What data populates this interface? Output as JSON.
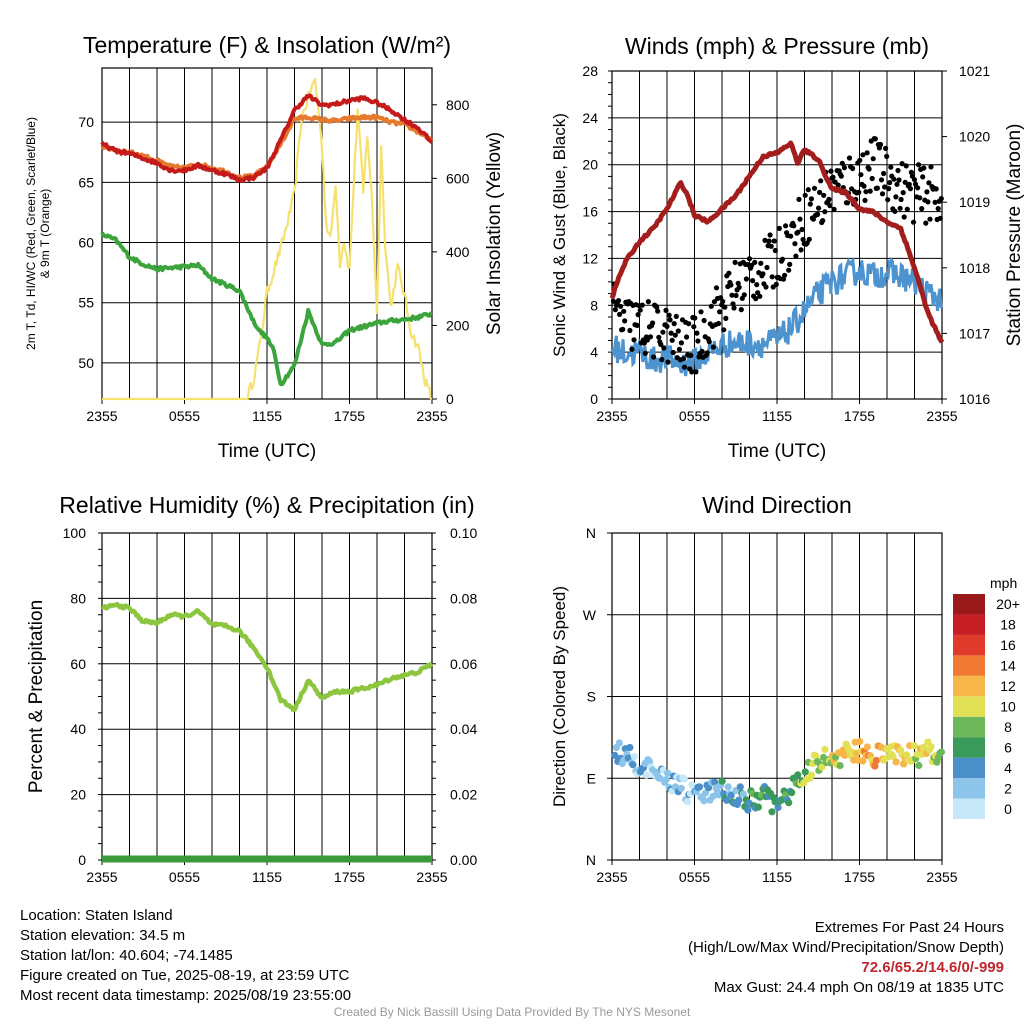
{
  "chart_data": [
    {
      "type": "line",
      "title": "Temperature (F) & Insolation (W/m²)",
      "xlabel": "Time (UTC)",
      "ylabel": "2m T, Td, HI/WC (Red, Green, Scarlet/Blue) & 9m T (Orange)",
      "y2label": "Solar Insolation (Yellow)",
      "x_ticks": [
        "2355",
        "0555",
        "1155",
        "1755",
        "2355"
      ],
      "y_ticks": [
        50,
        55,
        60,
        65,
        70
      ],
      "y2_ticks": [
        0,
        200,
        400,
        600,
        800
      ],
      "ylim": [
        47,
        74.5
      ],
      "y2lim": [
        0,
        900
      ],
      "grid": true,
      "series": [
        {
          "axis": "left",
          "color": "#c41a1a",
          "hours": [
            0,
            1,
            2,
            3,
            4,
            5,
            6,
            7,
            8,
            9,
            10,
            11,
            12,
            13,
            14,
            15,
            16,
            17,
            18,
            19,
            20,
            21,
            22,
            23,
            24
          ],
          "values": [
            68.2,
            67.6,
            67.4,
            67.0,
            66.6,
            66.0,
            66.0,
            66.4,
            66.0,
            65.7,
            65.2,
            65.4,
            66.2,
            68.5,
            71.0,
            72.2,
            71.4,
            71.5,
            71.8,
            72.0,
            71.6,
            71.0,
            70.2,
            69.5,
            68.3
          ]
        },
        {
          "axis": "left",
          "color": "#e5792d",
          "hours": [
            0,
            1,
            2,
            3,
            4,
            5,
            6,
            7,
            8,
            9,
            10,
            11,
            12,
            13,
            14,
            15,
            16,
            17,
            18,
            19,
            20,
            21,
            22,
            23,
            24
          ],
          "values": [
            68.0,
            67.7,
            67.5,
            67.2,
            66.8,
            66.3,
            66.2,
            66.5,
            66.2,
            65.9,
            65.4,
            65.5,
            66.3,
            68.2,
            70.3,
            70.4,
            70.2,
            70.1,
            70.3,
            70.4,
            70.4,
            70.0,
            69.8,
            69.2,
            68.5
          ]
        },
        {
          "axis": "left",
          "color": "#3ca43c",
          "hours": [
            0,
            1,
            2,
            3,
            4,
            5,
            6,
            7,
            8,
            9,
            10,
            11,
            11.5,
            12,
            12.5,
            13,
            14,
            15,
            16,
            17,
            18,
            19,
            20,
            21,
            22,
            23,
            24
          ],
          "values": [
            60.7,
            60.2,
            58.8,
            58.2,
            57.8,
            57.9,
            58.0,
            58.1,
            57.0,
            56.5,
            56.0,
            53.5,
            52.6,
            52.1,
            51.0,
            48.2,
            49.8,
            54.3,
            51.5,
            51.7,
            52.7,
            53.0,
            53.3,
            53.5,
            53.6,
            53.8,
            54.1
          ]
        },
        {
          "axis": "right",
          "color": "#f5e16e",
          "hours": [
            0,
            10.5,
            11,
            11.5,
            12,
            13,
            13.5,
            14,
            14.5,
            15,
            15.5,
            16,
            16.3,
            16.6,
            17,
            17.3,
            17.6,
            18,
            18.3,
            18.6,
            19,
            19.3,
            19.6,
            20,
            20.3,
            20.6,
            21,
            21.5,
            22,
            22.5,
            23,
            23.5,
            24
          ],
          "values": [
            0,
            0,
            50,
            150,
            290,
            410,
            480,
            560,
            760,
            820,
            870,
            690,
            480,
            430,
            590,
            370,
            430,
            350,
            580,
            790,
            560,
            720,
            560,
            240,
            690,
            420,
            250,
            360,
            280,
            180,
            140,
            50,
            0
          ]
        }
      ]
    },
    {
      "type": "line",
      "title": "Winds (mph) & Pressure (mb)",
      "xlabel": "Time (UTC)",
      "ylabel": "Sonic Wind & Gust (Blue, Black)",
      "y2label": "Station Pressure (Maroon)",
      "x_ticks": [
        "2355",
        "0555",
        "1155",
        "1755",
        "2355"
      ],
      "y_ticks": [
        0,
        4,
        8,
        12,
        16,
        20,
        24,
        28
      ],
      "y2_ticks": [
        1016,
        1017,
        1018,
        1019,
        1020,
        1021
      ],
      "ylim": [
        0,
        28
      ],
      "y2lim": [
        1016,
        1021
      ],
      "grid": true,
      "series": [
        {
          "name": "",
          "axis": "left",
          "color": "#4c93cf",
          "hours": [
            0,
            1,
            2,
            3,
            4,
            5,
            6,
            7,
            8,
            9,
            10,
            11,
            12,
            13,
            14,
            15,
            16,
            17,
            18,
            19,
            20,
            21,
            22,
            23,
            24
          ],
          "values": [
            4.5,
            3.9,
            4.0,
            3.3,
            3.5,
            3.0,
            3.2,
            3.9,
            4.6,
            4.8,
            4.8,
            4.7,
            5.0,
            6.0,
            7.5,
            9.0,
            10.0,
            10.5,
            11.0,
            10.5,
            10.8,
            10.5,
            10.0,
            9.0,
            8.5
          ]
        },
        {
          "name": "",
          "axis": "left",
          "color": "#000000",
          "type": "scatter",
          "hours": [
            0,
            1,
            2,
            3,
            4,
            5,
            6,
            7,
            8,
            9,
            10,
            11,
            12,
            13,
            14,
            15,
            16,
            17,
            18,
            19,
            20,
            21,
            22,
            23,
            24
          ],
          "values": [
            7.5,
            6.5,
            6.2,
            5.8,
            5.5,
            4.5,
            4.5,
            6.2,
            8.0,
            9.5,
            10.5,
            11.0,
            12.0,
            13.5,
            15.5,
            16.5,
            18.0,
            18.5,
            19.0,
            20.0,
            19.0,
            18.0,
            17.5,
            17.5,
            17.0
          ]
        },
        {
          "name": "",
          "axis": "right",
          "color": "#a31d1d",
          "hours": [
            0,
            0.5,
            1,
            2,
            3,
            4,
            5,
            5.5,
            6,
            7,
            8,
            9,
            10,
            11,
            12,
            13,
            13.5,
            14,
            15,
            16,
            17,
            18,
            19,
            20,
            21,
            22,
            23,
            24
          ],
          "values": [
            1017.55,
            1017.85,
            1018.1,
            1018.4,
            1018.6,
            1018.9,
            1019.3,
            1019.1,
            1018.8,
            1018.7,
            1018.9,
            1019.1,
            1019.4,
            1019.7,
            1019.75,
            1019.9,
            1019.6,
            1019.8,
            1019.65,
            1019.2,
            1019.15,
            1018.9,
            1018.85,
            1018.7,
            1018.6,
            1018.0,
            1017.3,
            1016.85
          ]
        }
      ]
    },
    {
      "type": "line",
      "title": "Relative Humidity (%) & Precipitation (in)",
      "xlabel": "",
      "ylabel": "Percent & Precipitation",
      "x_ticks": [
        "2355",
        "0555",
        "1155",
        "1755",
        "2355"
      ],
      "y_ticks": [
        0,
        20,
        40,
        60,
        80,
        100
      ],
      "y2_ticks": [
        "0.00",
        "0.02",
        "0.04",
        "0.06",
        "0.08",
        "0.10"
      ],
      "ylim": [
        0,
        100
      ],
      "y2lim": [
        0,
        0.1
      ],
      "grid": true,
      "series": [
        {
          "axis": "left",
          "color": "#8cc63e",
          "hours": [
            0,
            1,
            2,
            3,
            4,
            5,
            6,
            7,
            8,
            9,
            10,
            11,
            12,
            13,
            14,
            15,
            16,
            17,
            18,
            19,
            20,
            21,
            22,
            23,
            24
          ],
          "values": [
            77,
            78,
            77,
            73,
            72.5,
            75,
            74.5,
            76,
            72,
            71.5,
            70,
            65,
            59,
            49,
            46,
            55,
            49.5,
            51.5,
            51.5,
            52.5,
            53.5,
            55.5,
            56.5,
            57.5,
            60
          ]
        },
        {
          "axis": "right",
          "color": "#3a9a3a",
          "hours": [
            0,
            24
          ],
          "values": [
            0,
            0
          ]
        }
      ]
    },
    {
      "type": "scatter",
      "title": "Wind Direction",
      "xlabel": "",
      "ylabel": "Direction (Colored By Speed)",
      "x_ticks": [
        "2355",
        "0555",
        "1155",
        "1755",
        "2355"
      ],
      "y_ticks": [
        "N",
        "E",
        "S",
        "W",
        "N"
      ],
      "ylim": [
        0,
        360
      ],
      "grid": true,
      "colorbar": {
        "unit": "mph",
        "labels": [
          "0",
          "2",
          "4",
          "6",
          "8",
          "10",
          "12",
          "14",
          "16",
          "18",
          "20+"
        ],
        "colors": [
          "#c6e8f9",
          "#8dc5ea",
          "#4b8fc9",
          "#3a9a5a",
          "#6cb85a",
          "#e2e055",
          "#f8b549",
          "#f07a33",
          "#e03b2a",
          "#c61f25",
          "#9a1a1a"
        ]
      },
      "series": [
        {
          "hours": [
            0,
            1,
            2,
            3,
            4,
            5,
            6,
            7,
            8,
            9,
            10,
            11,
            12,
            13,
            14,
            15,
            16,
            17,
            18,
            19,
            20,
            21,
            22,
            23,
            24
          ],
          "values": [
            120,
            115,
            105,
            95,
            90,
            80,
            70,
            75,
            78,
            72,
            65,
            70,
            60,
            75,
            95,
            110,
            112,
            118,
            120,
            115,
            115,
            118,
            115,
            118,
            112
          ],
          "speeds": [
            3,
            3,
            2.5,
            2,
            2.5,
            2,
            2,
            3,
            4,
            4,
            5,
            6,
            5,
            6,
            8,
            9,
            10,
            11,
            11,
            12,
            11,
            11,
            10,
            10,
            9
          ]
        }
      ]
    }
  ],
  "info": {
    "location": "Location: Staten Island",
    "elevation": "Station elevation: 34.5 m",
    "latlon": "Station lat/lon: 40.604; -74.1485",
    "created": "Figure created on Tue, 2025-08-19, at 23:59 UTC",
    "recent": "Most recent data timestamp: 2025/08/19 23:55:00"
  },
  "extremes": {
    "title": "Extremes For Past 24 Hours",
    "subtitle": "(High/Low/Max Wind/Precipitation/Snow Depth)",
    "values": "72.6/65.2/14.6/0/-999",
    "gust": "Max Gust: 24.4 mph On 08/19 at 1835 UTC"
  },
  "credit": "Created By Nick Bassill Using Data Provided By The NYS Mesonet"
}
